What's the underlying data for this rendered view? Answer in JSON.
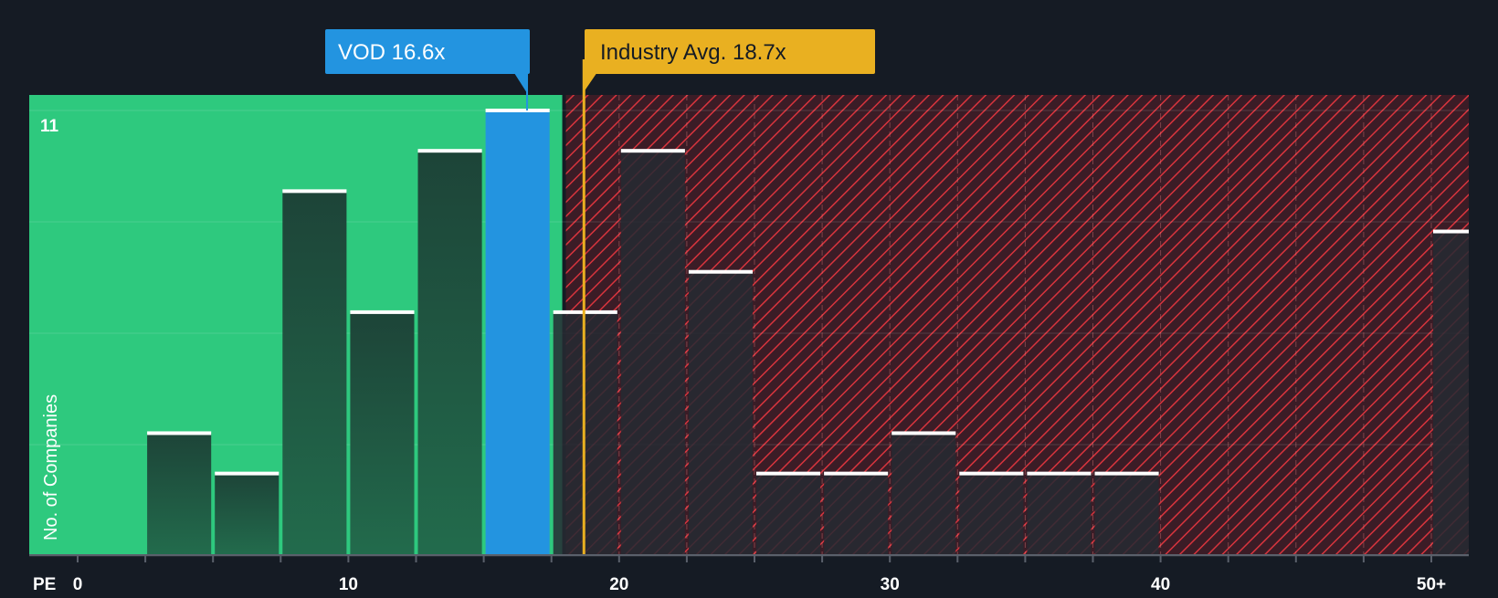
{
  "chart_data": {
    "type": "bar",
    "xlabel": "PE",
    "ylabel": "No. of Companies",
    "y_tick_top": "11",
    "x_ticks": [
      {
        "value": 0,
        "label": "0"
      },
      {
        "value": 10,
        "label": "10"
      },
      {
        "value": 20,
        "label": "20"
      },
      {
        "value": 30,
        "label": "30"
      },
      {
        "value": 40,
        "label": "40"
      },
      {
        "value": 50,
        "label": "50+"
      }
    ],
    "xlim": [
      0,
      51.25
    ],
    "ylim": [
      0,
      11
    ],
    "bin_width": 2.5,
    "bins": [
      {
        "start": 0,
        "value": 0
      },
      {
        "start": 2.5,
        "value": 3
      },
      {
        "start": 5,
        "value": 2
      },
      {
        "start": 7.5,
        "value": 9
      },
      {
        "start": 10,
        "value": 6
      },
      {
        "start": 12.5,
        "value": 10
      },
      {
        "start": 15,
        "value": 11,
        "highlight": true
      },
      {
        "start": 17.5,
        "value": 6
      },
      {
        "start": 20,
        "value": 10
      },
      {
        "start": 22.5,
        "value": 7
      },
      {
        "start": 25,
        "value": 2
      },
      {
        "start": 27.5,
        "value": 2
      },
      {
        "start": 30,
        "value": 3
      },
      {
        "start": 32.5,
        "value": 2
      },
      {
        "start": 35,
        "value": 2
      },
      {
        "start": 37.5,
        "value": 2
      },
      {
        "start": 40,
        "value": 0
      },
      {
        "start": 42.5,
        "value": 0
      },
      {
        "start": 45,
        "value": 0
      },
      {
        "start": 47.5,
        "value": 0
      },
      {
        "start": 50,
        "value": 8
      }
    ],
    "company": {
      "label": "VOD 16.6x",
      "value": 16.6
    },
    "industry_avg": {
      "label": "Industry Avg. 18.7x",
      "value": 18.7
    },
    "fair_region_end": 17.9,
    "colors": {
      "background": "#151b24",
      "fair_region": "#2ec97e",
      "overvalued_region": "#3b1c26",
      "hatch": "#d8343d",
      "bar_fair": "#1f4a3e",
      "bar_highlight": "#2394e0",
      "bar_over": "#262a33",
      "bar_cap": "#ffffff",
      "company_callout": "#2394e0",
      "industry_callout": "#e9b021",
      "axis_text": "#ffffff"
    }
  }
}
